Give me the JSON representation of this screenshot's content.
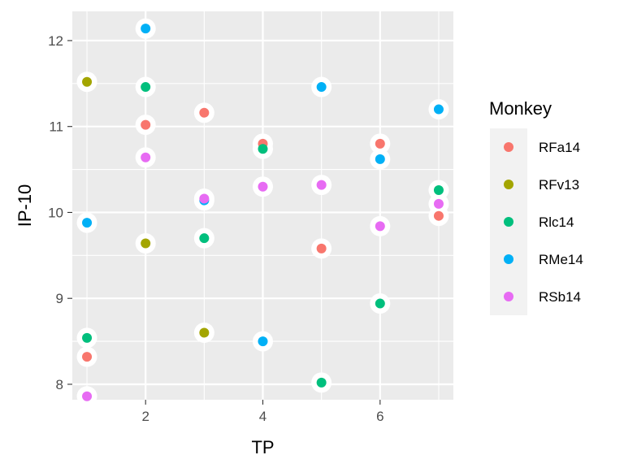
{
  "chart_data": {
    "type": "scatter",
    "title": "",
    "xlabel": "TP",
    "ylabel": "IP-10",
    "xlim": [
      0.75,
      7.25
    ],
    "ylim": [
      7.82,
      12.34
    ],
    "x_ticks": [
      2,
      4,
      6
    ],
    "x_tick_labels": [
      "2",
      "4",
      "6"
    ],
    "y_ticks": [
      8,
      9,
      10,
      11,
      12
    ],
    "y_tick_labels": [
      "8",
      "9",
      "10",
      "11",
      "12"
    ],
    "grid": true,
    "legend": {
      "title": "Monkey",
      "position": "right"
    },
    "series": [
      {
        "name": "RFa14",
        "color": "#F8766D",
        "points": [
          [
            1,
            8.32
          ],
          [
            2,
            11.02
          ],
          [
            3,
            11.16
          ],
          [
            4,
            10.8
          ],
          [
            5,
            9.58
          ],
          [
            6,
            10.8
          ],
          [
            7,
            9.96
          ]
        ]
      },
      {
        "name": "RFv13",
        "color": "#A3A500",
        "points": [
          [
            1,
            11.52
          ],
          [
            2,
            9.64
          ],
          [
            3,
            8.6
          ]
        ]
      },
      {
        "name": "Rlc14",
        "color": "#00BF7D",
        "points": [
          [
            1,
            8.54
          ],
          [
            2,
            11.46
          ],
          [
            3,
            9.7
          ],
          [
            4,
            10.74
          ],
          [
            5,
            8.02
          ],
          [
            6,
            8.94
          ],
          [
            7,
            10.26
          ]
        ]
      },
      {
        "name": "RMe14",
        "color": "#00B0F6",
        "points": [
          [
            1,
            9.88
          ],
          [
            2,
            12.14
          ],
          [
            3,
            10.14
          ],
          [
            4,
            8.5
          ],
          [
            5,
            11.46
          ],
          [
            6,
            10.62
          ],
          [
            7,
            11.2
          ]
        ]
      },
      {
        "name": "RSb14",
        "color": "#E76BF3",
        "points": [
          [
            1,
            7.86
          ],
          [
            2,
            10.64
          ],
          [
            3,
            10.16
          ],
          [
            4,
            10.3
          ],
          [
            5,
            10.32
          ],
          [
            6,
            9.84
          ],
          [
            7,
            10.1
          ]
        ]
      }
    ]
  }
}
